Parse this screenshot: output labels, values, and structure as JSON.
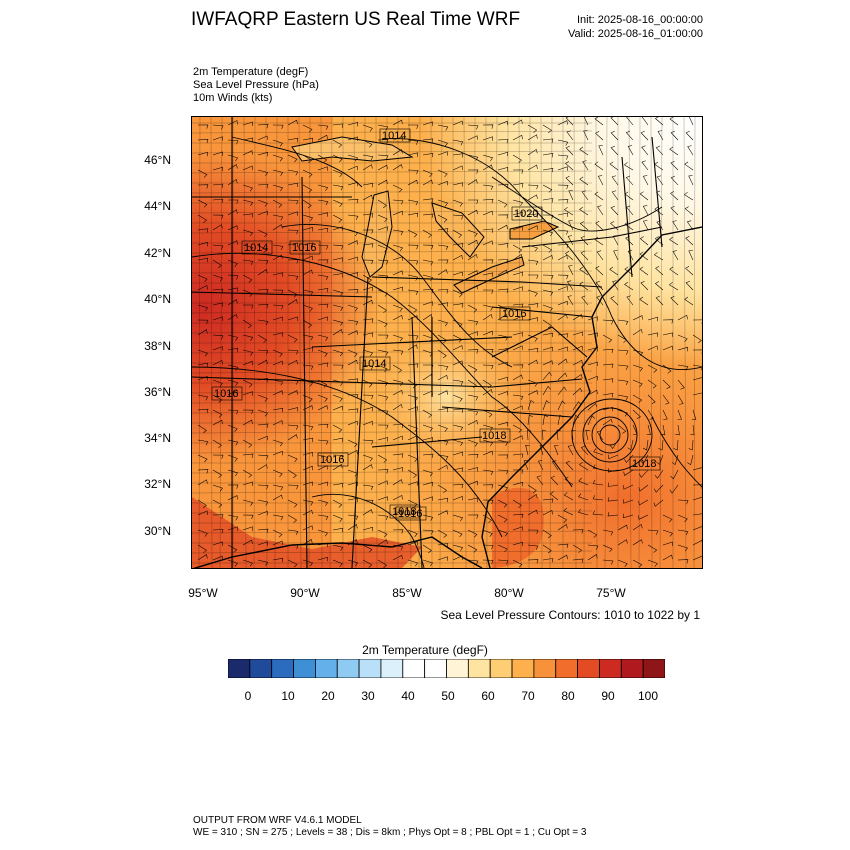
{
  "header": {
    "title": "IWFAQRP Eastern US Real Time WRF",
    "init": "Init: 2025-08-16_00:00:00",
    "valid": "Valid: 2025-08-16_01:00:00"
  },
  "fields": [
    "2m Temperature   (degF)",
    "Sea Level Pressure   (hPa)",
    "10m Winds   (kts)"
  ],
  "map": {
    "lat_labels": [
      "46°N",
      "44°N",
      "42°N",
      "40°N",
      "38°N",
      "36°N",
      "34°N",
      "32°N",
      "30°N"
    ],
    "lon_labels": [
      "95°W",
      "90°W",
      "85°W",
      "80°W",
      "75°W"
    ],
    "lat_range": [
      28.3,
      47.8
    ],
    "lon_range": [
      -95.5,
      -70.4
    ],
    "isobar_labels": [
      "1014",
      "1020",
      "1014",
      "1016",
      "1014",
      "1016",
      "1018",
      "1016",
      "1018",
      "1018",
      "1016",
      "1016"
    ],
    "low_center": "off Carolina coast near 74.5°W 34.1°N"
  },
  "slp_note": "Sea Level Pressure Contours: 1010 to 1022 by 1",
  "colorbar": {
    "title": "2m Temperature  (degF)",
    "tick_labels": [
      "0",
      "10",
      "20",
      "30",
      "40",
      "50",
      "60",
      "70",
      "80",
      "90",
      "100"
    ],
    "colors": [
      "#1b2a6b",
      "#1f4b9a",
      "#2b6cbf",
      "#3f8fd6",
      "#63b0ea",
      "#8fcaf3",
      "#b9e0f8",
      "#dcf0fb",
      "#ffffff",
      "#ffffff",
      "#fff4d6",
      "#ffe3a0",
      "#ffcd74",
      "#fdb04c",
      "#f8923a",
      "#f06d2c",
      "#e24b24",
      "#cd2a22",
      "#b01a1f",
      "#8e1518"
    ]
  },
  "footer": {
    "line1": "OUTPUT FROM WRF V4.6.1 MODEL",
    "line2": "WE = 310 ; SN = 275 ; Levels = 38 ; Dis = 8km ; Phys Opt = 8 ; PBL Opt = 1 ; Cu Opt = 3"
  }
}
